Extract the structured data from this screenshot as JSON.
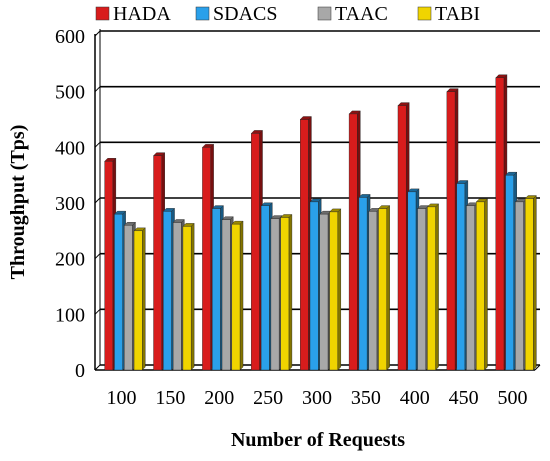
{
  "chart_data": {
    "type": "bar",
    "title": "",
    "xlabel": "Number of Requests",
    "ylabel": "Throughput (Tps)",
    "categories": [
      "100",
      "150",
      "200",
      "250",
      "300",
      "350",
      "400",
      "450",
      "500"
    ],
    "ylim": [
      0,
      600
    ],
    "yticks": [
      0,
      100,
      200,
      300,
      400,
      500,
      600
    ],
    "grid": true,
    "legend_position": "top",
    "series": [
      {
        "name": "HADA",
        "color": "#d81c1c",
        "values": [
          375,
          385,
          400,
          425,
          450,
          460,
          475,
          500,
          525
        ]
      },
      {
        "name": "SDACS",
        "color": "#2aa0ea",
        "values": [
          280,
          285,
          290,
          295,
          302,
          310,
          320,
          335,
          350
        ]
      },
      {
        "name": "TAAC",
        "color": "#a8a8a8",
        "values": [
          260,
          265,
          270,
          272,
          280,
          285,
          290,
          295,
          302
        ]
      },
      {
        "name": "TABI",
        "color": "#f0d400",
        "values": [
          250,
          258,
          262,
          274,
          284,
          290,
          293,
          302,
          308
        ]
      }
    ]
  }
}
